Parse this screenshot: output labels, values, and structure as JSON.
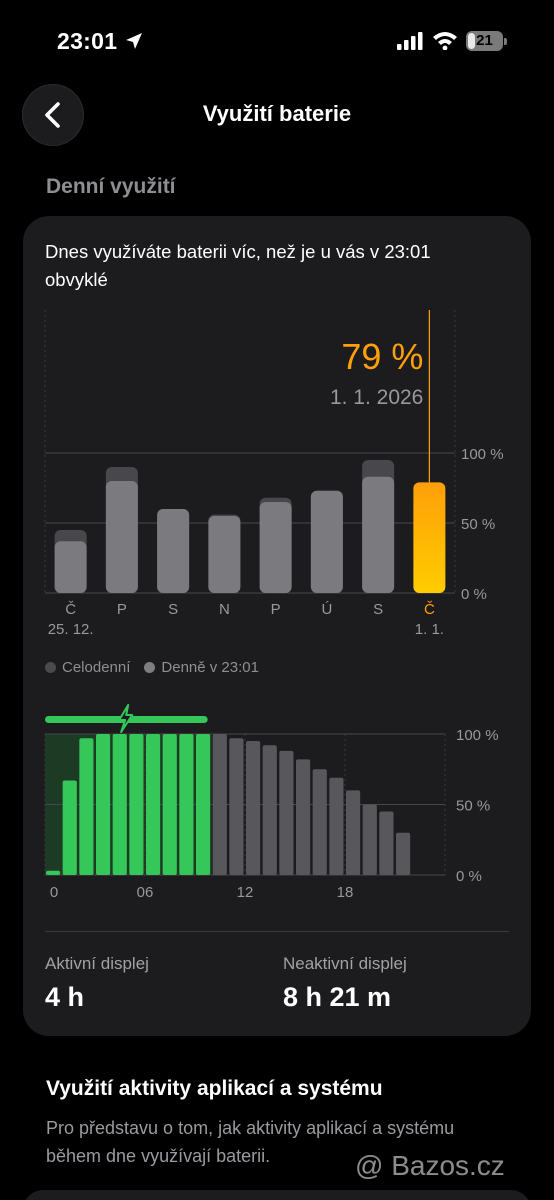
{
  "status_bar": {
    "time": "23:01",
    "battery_level": "21",
    "battery_fraction": 0.21
  },
  "nav": {
    "title": "Využití baterie"
  },
  "section_title": "Denní využití",
  "card": {
    "headline": "Dnes využíváte baterii víc, než je u vás v 23:01 obvyklé",
    "legend": [
      {
        "label": "Celodenní",
        "color": "#4a4a4e"
      },
      {
        "label": "Denně v 23:01",
        "color": "#7d7d82"
      }
    ],
    "stats": [
      {
        "label": "Aktivní displej",
        "value": "4 h"
      },
      {
        "label": "Neaktivní displej",
        "value": "8 h 21 m"
      }
    ]
  },
  "chart_data": [
    {
      "type": "bar",
      "categories": [
        "Č",
        "P",
        "S",
        "N",
        "P",
        "Ú",
        "S",
        "Č"
      ],
      "date_labels": [
        "25. 12.",
        "",
        "",
        "",
        "",
        "",
        "",
        "1. 1."
      ],
      "series": [
        {
          "name": "Celodenní",
          "values": [
            45,
            90,
            60,
            56,
            68,
            73,
            95,
            79
          ]
        },
        {
          "name": "Denně v 23:01",
          "values": [
            37,
            80,
            60,
            55,
            65,
            73,
            83,
            79
          ]
        }
      ],
      "highlight": {
        "index": 7,
        "value_label": "79 %",
        "date": "1. 1. 2026",
        "color": "#ff9f0a"
      },
      "yticks": [
        "100 %",
        "50 %",
        "0 %"
      ],
      "ylim": [
        0,
        100
      ]
    },
    {
      "type": "bar",
      "x": [
        0,
        1,
        2,
        3,
        4,
        5,
        6,
        7,
        8,
        9,
        10,
        11,
        12,
        13,
        14,
        15,
        16,
        17,
        18,
        19,
        20,
        21
      ],
      "values": [
        3,
        67,
        97,
        100,
        100,
        100,
        100,
        100,
        100,
        100,
        100,
        97,
        95,
        92,
        88,
        82,
        75,
        69,
        60,
        50,
        45,
        30
      ],
      "charging_hours": [
        0,
        1,
        2,
        3,
        4,
        5,
        6,
        7,
        8,
        9
      ],
      "xticks": [
        "0",
        "06",
        "12",
        "18"
      ],
      "yticks": [
        "100 %",
        "50 %",
        "0 %"
      ],
      "ylim": [
        0,
        100
      ],
      "colors": {
        "charging": "#35c759",
        "discharging": "#58585c"
      }
    }
  ],
  "footer": {
    "apps_title": "Využití aktivity aplikací a systému",
    "apps_desc": "Pro představu o tom, jak aktivity aplikací a systému během dne využívají baterii."
  },
  "watermark": "@ Bazos.cz",
  "icons": {
    "back": "chevron-left-icon",
    "location": "location-arrow-icon",
    "signal": "cellular-signal-icon",
    "wifi": "wifi-icon",
    "charging": "bolt-icon"
  }
}
